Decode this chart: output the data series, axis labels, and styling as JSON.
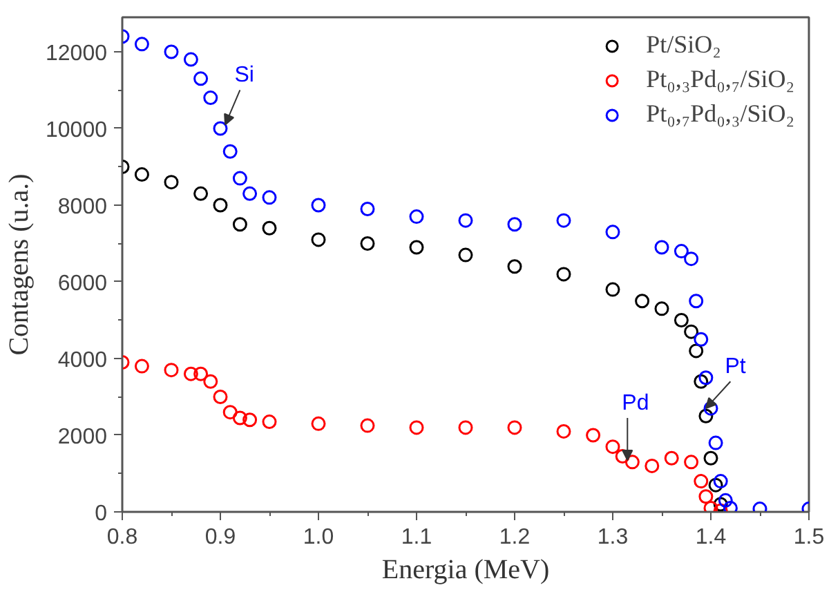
{
  "chart_data": {
    "type": "scatter",
    "xlabel": "Energia (MeV)",
    "ylabel": "Contagens (u.a.)",
    "xlim": [
      0.8,
      1.5
    ],
    "ylim": [
      0,
      12900
    ],
    "xticks": [
      {
        "value": 0.8,
        "label": "0.8"
      },
      {
        "value": 0.9,
        "label": "0.9"
      },
      {
        "value": 1.0,
        "label": "1.0"
      },
      {
        "value": 1.1,
        "label": "1.1"
      },
      {
        "value": 1.2,
        "label": "1.2"
      },
      {
        "value": 1.3,
        "label": "1.3"
      },
      {
        "value": 1.4,
        "label": "1.4"
      },
      {
        "value": 1.5,
        "label": "1.5"
      }
    ],
    "yticks": [
      0,
      2000,
      4000,
      6000,
      8000,
      10000,
      12000
    ],
    "grid": false,
    "legend": "top right",
    "marker": "circle",
    "series": [
      {
        "name": "Pt/SiO₂",
        "color": "#000000",
        "x": [
          0.8,
          0.82,
          0.85,
          0.88,
          0.9,
          0.92,
          0.95,
          1.0,
          1.05,
          1.1,
          1.15,
          1.2,
          1.25,
          1.3,
          1.33,
          1.35,
          1.37,
          1.38,
          1.385,
          1.39,
          1.395,
          1.4,
          1.405,
          1.41
        ],
        "values": [
          9000,
          8800,
          8600,
          8300,
          8000,
          7500,
          7400,
          7100,
          7000,
          6900,
          6700,
          6400,
          6200,
          5800,
          5500,
          5300,
          5000,
          4700,
          4200,
          3400,
          2500,
          1400,
          700,
          200
        ]
      },
      {
        "name": "Pt₀,₃Pd₀,₇/SiO₂",
        "color": "#ff0000",
        "x": [
          0.8,
          0.82,
          0.85,
          0.87,
          0.88,
          0.89,
          0.9,
          0.91,
          0.92,
          0.93,
          0.95,
          1.0,
          1.05,
          1.1,
          1.15,
          1.2,
          1.25,
          1.28,
          1.3,
          1.31,
          1.32,
          1.34,
          1.36,
          1.38,
          1.39,
          1.395,
          1.4,
          1.41
        ],
        "values": [
          3900,
          3800,
          3700,
          3600,
          3600,
          3400,
          3000,
          2600,
          2450,
          2400,
          2350,
          2300,
          2250,
          2200,
          2200,
          2200,
          2100,
          2000,
          1700,
          1450,
          1300,
          1200,
          1400,
          1300,
          800,
          400,
          100,
          30
        ]
      },
      {
        "name": "Pt₀,₇Pd₀,₃/SiO₂",
        "color": "#0000ff",
        "x": [
          0.8,
          0.82,
          0.85,
          0.87,
          0.88,
          0.89,
          0.9,
          0.91,
          0.92,
          0.93,
          0.95,
          1.0,
          1.05,
          1.1,
          1.15,
          1.2,
          1.25,
          1.3,
          1.35,
          1.37,
          1.38,
          1.385,
          1.39,
          1.395,
          1.4,
          1.405,
          1.41,
          1.415,
          1.42,
          1.45,
          1.5
        ],
        "values": [
          12400,
          12200,
          12000,
          11800,
          11300,
          10800,
          10000,
          9400,
          8700,
          8300,
          8200,
          8000,
          7900,
          7700,
          7600,
          7500,
          7600,
          7300,
          6900,
          6800,
          6600,
          5500,
          4500,
          3500,
          2700,
          1800,
          800,
          300,
          100,
          80,
          80
        ]
      }
    ],
    "annotations": [
      {
        "text": "Si",
        "x": 0.905,
        "y": 10100
      },
      {
        "text": "Pd",
        "x": 1.315,
        "y": 1350
      },
      {
        "text": "Pt",
        "x": 1.395,
        "y": 2700
      }
    ]
  }
}
